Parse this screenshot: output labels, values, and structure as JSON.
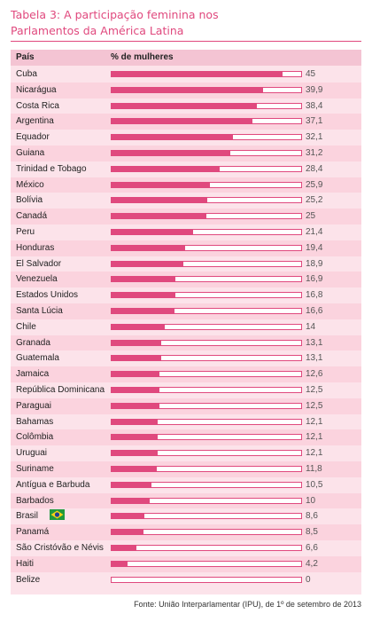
{
  "title": "Tabela 3: A participação feminina nos Parlamentos da América Latina",
  "header": {
    "country": "País",
    "percent": "% de mulheres"
  },
  "source": "Fonte: União Interparlamentar (IPU), de 1º de setembro de 2013",
  "colors": {
    "accent": "#e0497e",
    "panel": "#fce3ea",
    "row_alt": "#fbd3de",
    "header": "#f4c4d3"
  },
  "chart_data": {
    "type": "bar",
    "orientation": "horizontal",
    "xlim": [
      0,
      50
    ],
    "categories": [
      "Cuba",
      "Nicarágua",
      "Costa Rica",
      "Argentina",
      "Equador",
      "Guiana",
      "Trinidad e Tobago",
      "México",
      "Bolívia",
      "Canadá",
      "Peru",
      "Honduras",
      "El Salvador",
      "Venezuela",
      "Estados Unidos",
      "Santa Lúcia",
      "Chile",
      "Granada",
      "Guatemala",
      "Jamaica",
      "República Dominicana",
      "Paraguai",
      "Bahamas",
      "Colômbia",
      "Uruguai",
      "Suriname",
      "Antígua e Barbuda",
      "Barbados",
      "Brasil",
      "Panamá",
      "São Cristóvão e Névis",
      "Haiti",
      "Belize"
    ],
    "values": [
      45,
      39.9,
      38.4,
      37.1,
      32.1,
      31.2,
      28.4,
      25.9,
      25.2,
      25,
      21.4,
      19.4,
      18.9,
      16.9,
      16.8,
      16.6,
      14,
      13.1,
      13.1,
      12.6,
      12.5,
      12.5,
      12.1,
      12.1,
      12.1,
      11.8,
      10.5,
      10,
      8.6,
      8.5,
      6.6,
      4.2,
      0
    ],
    "labels": [
      "45",
      "39,9",
      "38,4",
      "37,1",
      "32,1",
      "31,2",
      "28,4",
      "25,9",
      "25,2",
      "25",
      "21,4",
      "19,4",
      "18,9",
      "16,9",
      "16,8",
      "16,6",
      "14",
      "13,1",
      "13,1",
      "12,6",
      "12,5",
      "12,5",
      "12,1",
      "12,1",
      "12,1",
      "11,8",
      "10,5",
      "10",
      "8,6",
      "8,5",
      "6,6",
      "4,2",
      "0"
    ],
    "flag_icon_for": "Brasil"
  }
}
